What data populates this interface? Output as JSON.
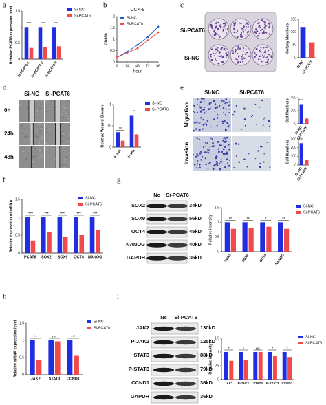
{
  "panel_labels": [
    "a",
    "b",
    "c",
    "d",
    "e",
    "f",
    "g",
    "h",
    "i"
  ],
  "images": {
    "c": {
      "row_labels": [
        "Si-PCAT6",
        "Si-NC"
      ]
    },
    "d": {
      "column_labels": [
        "Si-NC",
        "Si-PCAT6"
      ],
      "row_labels": [
        "0h",
        "24h",
        "48h"
      ]
    },
    "e": {
      "column_labels": [
        "Si-NC",
        "Si-PCAT6"
      ],
      "row_labels": [
        "Migration",
        "Invasion"
      ]
    },
    "g": {
      "column_labels": [
        "Nc",
        "Si-PCAT6"
      ],
      "rows": [
        {
          "protein": "SOX2",
          "size": "34kD"
        },
        {
          "protein": "SOX9",
          "size": "56kD"
        },
        {
          "protein": "OCT4",
          "size": "45kD"
        },
        {
          "protein": "NANOG",
          "size": "40kD"
        },
        {
          "protein": "GAPDH",
          "size": "36kD"
        }
      ]
    },
    "i": {
      "column_labels": [
        "Nc",
        "Si-PCAT6"
      ],
      "rows": [
        {
          "protein": "JAK2",
          "size": "130kD"
        },
        {
          "protein": "P-JAK2",
          "size": "125kD"
        },
        {
          "protein": "STAT3",
          "size": "88kD"
        },
        {
          "protein": "P-STAT3",
          "size": "79kD"
        },
        {
          "protein": "CCND1",
          "size": "36kD"
        },
        {
          "protein": "GAPDH",
          "size": "36kD"
        }
      ]
    }
  },
  "chart_data": [
    {
      "type": "bar",
      "ylabel": "Relative PCAT6 expression level",
      "categories": [
        "Si-PCAT6-1",
        "Si-PCAT6-2",
        "Si-PCAT6-3"
      ],
      "series": [
        {
          "name": "Si-NC",
          "color": "#1f2ee0",
          "values": [
            1,
            1,
            1
          ]
        },
        {
          "name": "Si-PCAT6",
          "color": "#f04a4a",
          "values": [
            0.35,
            0.38,
            0.4
          ]
        }
      ],
      "annotations": [
        "***",
        "***",
        "***"
      ],
      "ylim": [
        0,
        1.5
      ],
      "yticks": [
        0,
        0.5,
        1,
        1.5
      ],
      "legend": "outside right"
    },
    {
      "type": "line",
      "title": "CCK-8",
      "xlabel": "hour",
      "ylabel": "OD450",
      "x": [
        0,
        24,
        48,
        72,
        96
      ],
      "series": [
        {
          "name": "Si-NC",
          "color": "#1f5fd0",
          "values": [
            0.2,
            0.45,
            0.75,
            1.1,
            1.55
          ]
        },
        {
          "name": "Si-PCAT6",
          "color": "#f04a4a",
          "values": [
            0.2,
            0.4,
            0.6,
            0.95,
            1.3
          ]
        }
      ],
      "xlim": [
        0,
        96
      ],
      "xticks": [
        0,
        24,
        48,
        72,
        96
      ],
      "ylim": [
        0,
        2
      ],
      "yticks": [
        0,
        0.5,
        1,
        1.5,
        2
      ],
      "legend": "upper left"
    },
    {
      "type": "bar",
      "ylabel": "Colony Numbers",
      "categories": [
        "Si-NC",
        "Si-PCAT6"
      ],
      "values": [
        120,
        60
      ],
      "colors": [
        "#1f2ee0",
        "#f04a4a"
      ],
      "annotations": [
        "*",
        null
      ],
      "ylim": [
        0,
        150
      ],
      "yticks": [
        0,
        50,
        100,
        150
      ]
    },
    {
      "type": "bar",
      "ylabel": "Relative Wound Closure",
      "categories": [
        "0~24h",
        "0~48h"
      ],
      "series": [
        {
          "name": "Si-NC",
          "color": "#1f2ee0",
          "values": [
            0.35,
            0.75
          ]
        },
        {
          "name": "Si-PCAT6",
          "color": "#f04a4a",
          "values": [
            0.15,
            0.3
          ]
        }
      ],
      "annotations": [
        "**",
        "**"
      ],
      "ylim": [
        0,
        1
      ],
      "yticks": [
        0,
        0.5,
        1
      ],
      "legend": "outside right"
    },
    {
      "type": "bar",
      "ylabel": "Cell Numbers",
      "categories": [
        "Si-NC",
        "Si-PCAT6"
      ],
      "values": [
        300,
        80
      ],
      "colors": [
        "#1f2ee0",
        "#f04a4a"
      ],
      "annotations": [
        "***",
        null
      ],
      "ylim": [
        0,
        400
      ],
      "yticks": [
        0,
        200,
        400
      ]
    },
    {
      "type": "bar",
      "ylabel": "Cell Numbers",
      "categories": [
        "Si-NC",
        "Si-PCAT6"
      ],
      "values": [
        250,
        60
      ],
      "colors": [
        "#1f2ee0",
        "#f04a4a"
      ],
      "annotations": [
        "***",
        null
      ],
      "ylim": [
        0,
        300
      ],
      "yticks": [
        0,
        100,
        200,
        300
      ]
    },
    {
      "type": "bar",
      "ylabel": "Relative expression of mRNA",
      "categories": [
        "PCAT6",
        "SOX2",
        "SOX9",
        "OCT4",
        "NANOG"
      ],
      "series": [
        {
          "name": "Si-NC",
          "color": "#1f2ee0",
          "values": [
            1,
            1,
            1,
            1,
            1
          ]
        },
        {
          "name": "Si-PCAT6",
          "color": "#f04a4a",
          "values": [
            0.35,
            0.58,
            0.45,
            0.5,
            0.65
          ]
        }
      ],
      "annotations": [
        "****",
        "***",
        "****",
        "***",
        "***"
      ],
      "ylim": [
        0,
        1.5
      ],
      "yticks": [
        0,
        0.5,
        1,
        1.5
      ],
      "legend": "upper right"
    },
    {
      "type": "bar",
      "ylabel": "Relative intensity",
      "categories": [
        "SOX2",
        "SOX9",
        "OCT4",
        "NANOG"
      ],
      "series": [
        {
          "name": "Si-NC",
          "color": "#1f2ee0",
          "values": [
            1,
            1,
            1,
            1
          ]
        },
        {
          "name": "Si-PCAT6",
          "color": "#f04a4a",
          "values": [
            0.78,
            0.8,
            0.85,
            0.78
          ]
        }
      ],
      "annotations": [
        "**",
        "**",
        "*",
        "**"
      ],
      "ylim": [
        0,
        1.5
      ],
      "yticks": [
        0,
        0.5,
        1,
        1.5
      ],
      "legend": "outside right"
    },
    {
      "type": "bar",
      "ylabel": "Relative mRNA expression level",
      "categories": [
        "JAK2",
        "STAT3",
        "CCND1"
      ],
      "series": [
        {
          "name": "Si-NC",
          "color": "#1f2ee0",
          "values": [
            1,
            1,
            1
          ]
        },
        {
          "name": "Si-PCAT6",
          "color": "#f04a4a",
          "values": [
            0.42,
            0.97,
            0.55
          ]
        }
      ],
      "annotations": [
        "**",
        "ns",
        "***"
      ],
      "ylim": [
        0,
        1.5
      ],
      "yticks": [
        0,
        0.5,
        1,
        1.5
      ],
      "legend": "outside right"
    },
    {
      "type": "bar",
      "ylabel": "Relative intensity",
      "categories": [
        "JAK2",
        "P-JAK2",
        "STAT3",
        "P-STAT3",
        "CCND1"
      ],
      "series": [
        {
          "name": "Si-NC",
          "color": "#1f2ee0",
          "values": [
            1,
            1,
            1,
            1,
            1
          ]
        },
        {
          "name": "Si-PCAT6",
          "color": "#f04a4a",
          "values": [
            0.68,
            0.7,
            1,
            0.85,
            0.82
          ]
        }
      ],
      "annotations": [
        "*",
        "*",
        "ns",
        "*",
        "*"
      ],
      "ylim": [
        0,
        1.5
      ],
      "yticks": [
        0,
        0.5,
        1,
        1.5
      ],
      "legend": "outside right"
    }
  ]
}
